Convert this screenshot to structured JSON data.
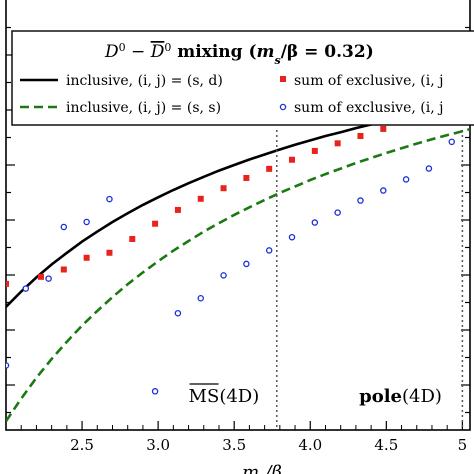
{
  "chart_data": {
    "type": "line",
    "title": "D⁰ − D̅⁰ mixing (mₛ/β = 0.32)",
    "xlabel": "mₛ/β",
    "ylabel": "",
    "xlim": [
      2.0,
      5.05
    ],
    "x_ticks": [
      2.5,
      3.0,
      3.5,
      4.0,
      4.5,
      5.0
    ],
    "x_tick_labels": [
      "2.5",
      "3.0",
      "3.5",
      "4.0",
      "4.5",
      "5"
    ],
    "y_ticks_count": 16,
    "grid": false,
    "legend_placement": "top",
    "series": [
      {
        "name": "inclusive, (i, j) = (s, d)",
        "style": "solid-line",
        "color": "#000000",
        "x": [
          2.0,
          2.1,
          2.2,
          2.3,
          2.4,
          2.5,
          2.6,
          2.7,
          2.8,
          2.9,
          3.0,
          3.1,
          3.2,
          3.3,
          3.4,
          3.5,
          3.6,
          3.7,
          3.8,
          3.9,
          4.0,
          4.1,
          4.2,
          4.3,
          4.4,
          4.5,
          4.6,
          4.7,
          4.8,
          4.9,
          5.0,
          5.05
        ],
        "y": [
          0.0,
          0.052,
          0.1,
          0.144,
          0.184,
          0.222,
          0.256,
          0.289,
          0.319,
          0.347,
          0.373,
          0.398,
          0.421,
          0.443,
          0.464,
          0.483,
          0.502,
          0.519,
          0.536,
          0.552,
          0.567,
          0.582,
          0.595,
          0.609,
          0.621,
          0.633,
          0.645,
          0.656,
          0.667,
          0.677,
          0.687,
          0.692
        ]
      },
      {
        "name": "inclusive, (i, j) = (s, s)",
        "style": "dashed-line",
        "color": "#1a7a12",
        "x": [
          2.0,
          2.1,
          2.2,
          2.3,
          2.4,
          2.5,
          2.6,
          2.7,
          2.8,
          2.9,
          3.0,
          3.1,
          3.2,
          3.3,
          3.4,
          3.5,
          3.6,
          3.7,
          3.8,
          3.9,
          4.0,
          4.1,
          4.2,
          4.3,
          4.4,
          4.5,
          4.6,
          4.7,
          4.8,
          4.9,
          5.0,
          5.05
        ],
        "y": [
          -0.39,
          -0.313,
          -0.242,
          -0.178,
          -0.119,
          -0.064,
          -0.014,
          0.033,
          0.077,
          0.117,
          0.155,
          0.191,
          0.224,
          0.256,
          0.285,
          0.313,
          0.339,
          0.364,
          0.388,
          0.41,
          0.432,
          0.452,
          0.471,
          0.49,
          0.507,
          0.524,
          0.54,
          0.556,
          0.571,
          0.585,
          0.598,
          0.605
        ]
      },
      {
        "name": "sum of exclusive, (i, j",
        "style": "square-markers",
        "color": "#e8231e",
        "x": [
          2.0,
          2.23,
          2.38,
          2.53,
          2.68,
          2.83,
          2.98,
          3.13,
          3.28,
          3.43,
          3.58,
          3.73,
          3.88,
          4.03,
          4.18,
          4.33,
          4.48,
          4.63,
          4.78,
          4.93
        ],
        "y": [
          0.078,
          0.102,
          0.127,
          0.167,
          0.184,
          0.231,
          0.283,
          0.33,
          0.368,
          0.404,
          0.439,
          0.47,
          0.501,
          0.531,
          0.557,
          0.582,
          0.606,
          0.629,
          0.651,
          0.671
        ]
      },
      {
        "name": "sum of exclusive, (i, j",
        "style": "circle-markers",
        "color": "#1a2fd6",
        "x": [
          2.0,
          2.13,
          2.28,
          2.38,
          2.53,
          2.68,
          2.98,
          3.13,
          3.28,
          3.43,
          3.58,
          3.73,
          3.88,
          4.03,
          4.18,
          4.33,
          4.48,
          4.63,
          4.78,
          4.93
        ],
        "y": [
          -0.2,
          0.062,
          0.096,
          0.272,
          0.289,
          0.367,
          -0.288,
          -0.022,
          0.029,
          0.107,
          0.146,
          0.192,
          0.237,
          0.287,
          0.321,
          0.362,
          0.396,
          0.434,
          0.471,
          0.562
        ]
      }
    ],
    "vertical_lines": [
      {
        "x": 3.78,
        "style": "dotted"
      },
      {
        "x": 5.0,
        "style": "dotted"
      }
    ],
    "annotations": [
      {
        "text_main": "MS",
        "text_suffix": "(4D)",
        "overline": true,
        "x": 3.2
      },
      {
        "text_main": "pole",
        "text_suffix": "(4D)",
        "bold_main": true,
        "x": 4.4
      }
    ]
  },
  "legend": {
    "title_left": "D",
    "title_sup1": "0",
    "title_minus": " − ",
    "title_dbar": "D",
    "title_sup2": "0",
    "title_rest": " mixing (",
    "title_ms": "m",
    "title_s": "s",
    "title_beta": "/β = 0.32)",
    "items": [
      "inclusive, (i, j) = (s, d)",
      "sum of exclusive, (i, j",
      "inclusive, (i, j) = (s, s)",
      "sum of exclusive, (i, j"
    ]
  },
  "labels": {
    "xlabel_main": "m",
    "xlabel_sub": "s",
    "xlabel_rest": "/β"
  },
  "colors": {
    "inclusive_sd": "#000000",
    "inclusive_ss": "#1a7a12",
    "exclusive_squares": "#e8231e",
    "exclusive_circles": "#1a2fd6"
  }
}
